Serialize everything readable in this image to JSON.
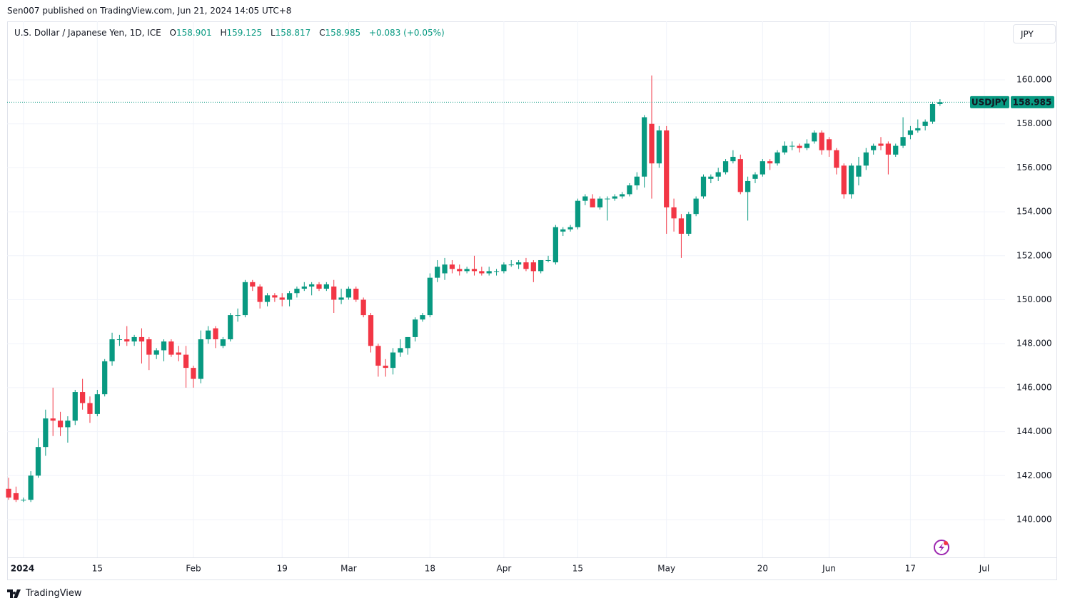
{
  "publisher_line": "Sen007 published on TradingView.com, Jun 21, 2024 14:05 UTC+8",
  "brand": "TradingView",
  "chart_data": {
    "type": "candlestick",
    "title": "U.S. Dollar / Japanese Yen, 1D, ICE",
    "ohlc_labels": [
      "O",
      "H",
      "L",
      "C"
    ],
    "change_text": "+0.083 (+0.05%)",
    "symbol": "USDJPY",
    "currency": "JPY",
    "up_color": "#089981",
    "down_color": "#f23645",
    "grid": true,
    "open": [
      141.4,
      141.2,
      140.9,
      140.9,
      142.0,
      143.3,
      144.6,
      144.5,
      144.2,
      144.5,
      145.8,
      145.3,
      144.8,
      145.7,
      147.2,
      148.2,
      148.2,
      148.1,
      148.3,
      148.2,
      147.5,
      147.7,
      148.1,
      147.6,
      147.5,
      146.9,
      146.4,
      148.2,
      148.7,
      147.9,
      148.2,
      149.3,
      149.3,
      150.8,
      150.6,
      149.9,
      150.2,
      150.1,
      150.0,
      150.3,
      150.5,
      150.6,
      150.7,
      150.5,
      150.6,
      150.0,
      150.1,
      150.5,
      150.0,
      149.3,
      147.9,
      147.0,
      146.9,
      147.6,
      147.8,
      148.3,
      149.1,
      149.3,
      151.0,
      151.2,
      151.6,
      151.4,
      151.3,
      151.4,
      151.3,
      151.2,
      151.3,
      151.3,
      151.6,
      151.6,
      151.7,
      151.7,
      151.3,
      151.8,
      151.7,
      153.1,
      153.2,
      153.3,
      154.5,
      154.6,
      154.2,
      154.6,
      154.6,
      154.7,
      154.8,
      155.2,
      155.6,
      158.0,
      156.2,
      157.7,
      154.2,
      153.7,
      153.0,
      153.9,
      154.7,
      155.5,
      155.6,
      155.8,
      156.3,
      156.4,
      154.9,
      155.5,
      155.7,
      156.3,
      156.2,
      156.7,
      157.0,
      157.0,
      156.9,
      157.2,
      157.6,
      157.3,
      156.8,
      156.1,
      154.8,
      155.6,
      156.1,
      156.8,
      157.1,
      157.1,
      156.6,
      157.0,
      157.5,
      157.7,
      157.9,
      158.1,
      158.901
    ],
    "high": [
      141.9,
      141.5,
      141.0,
      142.2,
      143.7,
      145.0,
      146.0,
      144.9,
      144.7,
      145.9,
      146.4,
      145.6,
      145.9,
      147.3,
      148.5,
      148.4,
      148.8,
      148.4,
      148.7,
      148.3,
      147.8,
      148.2,
      148.2,
      147.9,
      147.9,
      147.0,
      148.6,
      148.8,
      148.8,
      148.3,
      149.4,
      149.6,
      150.9,
      150.9,
      150.7,
      150.3,
      150.3,
      150.3,
      150.4,
      150.6,
      150.8,
      150.8,
      150.8,
      150.8,
      150.9,
      150.5,
      150.6,
      150.6,
      150.1,
      149.4,
      148.0,
      147.3,
      147.8,
      148.2,
      148.3,
      149.2,
      149.4,
      151.2,
      151.8,
      151.9,
      151.8,
      151.6,
      151.5,
      152.0,
      151.5,
      151.5,
      151.4,
      151.7,
      151.8,
      151.8,
      151.9,
      151.8,
      151.8,
      152.0,
      153.4,
      153.3,
      153.4,
      154.6,
      154.8,
      154.8,
      154.7,
      154.7,
      154.8,
      154.9,
      155.3,
      155.8,
      158.4,
      160.2,
      157.9,
      157.9,
      154.6,
      153.9,
      154.0,
      154.7,
      155.7,
      155.7,
      156.0,
      156.4,
      156.8,
      156.6,
      155.6,
      155.8,
      156.4,
      156.4,
      156.8,
      157.2,
      157.2,
      157.1,
      157.3,
      157.7,
      157.7,
      157.4,
      156.9,
      156.2,
      156.2,
      156.5,
      156.9,
      157.1,
      157.4,
      157.2,
      157.1,
      158.3,
      157.9,
      158.2,
      158.2,
      159.0,
      159.125
    ],
    "low": [
      140.9,
      140.8,
      140.8,
      140.8,
      141.9,
      142.9,
      143.8,
      143.8,
      143.5,
      144.3,
      145.0,
      144.4,
      144.7,
      145.6,
      147.0,
      147.9,
      147.9,
      147.9,
      147.1,
      146.8,
      147.3,
      147.2,
      147.4,
      147.2,
      146.0,
      146.0,
      146.2,
      148.0,
      147.8,
      147.8,
      148.1,
      149.0,
      149.2,
      150.4,
      149.6,
      149.7,
      149.9,
      149.7,
      149.7,
      150.1,
      150.4,
      150.2,
      150.4,
      150.4,
      149.4,
      149.8,
      150.0,
      149.9,
      149.2,
      147.6,
      146.5,
      146.5,
      146.6,
      147.4,
      147.5,
      148.1,
      149.0,
      149.2,
      150.8,
      150.9,
      151.2,
      151.1,
      151.2,
      151.1,
      151.1,
      151.1,
      151.1,
      151.2,
      151.5,
      151.4,
      151.3,
      150.8,
      151.2,
      151.7,
      151.6,
      152.9,
      153.1,
      153.2,
      154.3,
      154.2,
      154.1,
      153.6,
      154.5,
      154.6,
      154.7,
      155.0,
      155.1,
      154.6,
      156.0,
      153.0,
      153.1,
      151.9,
      152.9,
      153.8,
      154.6,
      155.3,
      155.4,
      155.7,
      156.2,
      154.8,
      153.6,
      155.3,
      155.6,
      155.9,
      156.1,
      156.6,
      156.8,
      156.7,
      156.8,
      157.1,
      156.6,
      156.5,
      155.7,
      154.6,
      154.6,
      155.2,
      155.9,
      156.6,
      156.8,
      155.7,
      156.5,
      156.9,
      157.3,
      157.6,
      157.7,
      158.0,
      158.817
    ],
    "close": [
      141.0,
      140.9,
      140.9,
      142.0,
      143.3,
      144.6,
      144.5,
      144.2,
      144.5,
      145.8,
      145.3,
      144.8,
      145.7,
      147.2,
      148.2,
      148.2,
      148.1,
      148.3,
      148.1,
      147.5,
      147.7,
      148.1,
      147.5,
      147.5,
      146.9,
      146.4,
      148.2,
      148.6,
      148.2,
      148.2,
      149.3,
      149.3,
      150.8,
      150.6,
      149.9,
      150.2,
      150.1,
      150.0,
      150.3,
      150.5,
      150.6,
      150.7,
      150.5,
      150.7,
      150.0,
      150.1,
      150.5,
      150.0,
      149.3,
      147.9,
      147.0,
      146.9,
      147.6,
      147.8,
      148.3,
      149.1,
      149.3,
      151.0,
      151.5,
      151.6,
      151.4,
      151.3,
      151.4,
      151.3,
      151.2,
      151.3,
      151.3,
      151.6,
      151.6,
      151.7,
      151.4,
      151.3,
      151.8,
      151.8,
      153.3,
      153.2,
      153.3,
      154.5,
      154.7,
      154.2,
      154.6,
      154.6,
      154.7,
      154.8,
      155.2,
      155.6,
      158.3,
      156.2,
      157.7,
      154.2,
      153.7,
      153.0,
      153.9,
      154.6,
      155.6,
      155.6,
      155.8,
      156.3,
      156.5,
      154.9,
      155.4,
      155.7,
      156.3,
      156.2,
      156.7,
      157.0,
      157.0,
      156.9,
      157.1,
      157.6,
      156.8,
      156.8,
      156.0,
      154.8,
      156.1,
      156.1,
      156.7,
      157.0,
      157.0,
      156.6,
      157.0,
      157.4,
      157.7,
      157.8,
      158.1,
      158.9,
      158.985
    ],
    "xlim": [
      -0.2,
      134.8
    ],
    "xticks": [
      {
        "value": 2,
        "label": "2024"
      },
      {
        "value": 12,
        "label": "15"
      },
      {
        "value": 25,
        "label": "Feb"
      },
      {
        "value": 37,
        "label": "19"
      },
      {
        "value": 46,
        "label": "Mar"
      },
      {
        "value": 57,
        "label": "18"
      },
      {
        "value": 67,
        "label": "Apr"
      },
      {
        "value": 77,
        "label": "15"
      },
      {
        "value": 89,
        "label": "May"
      },
      {
        "value": 102,
        "label": "20"
      },
      {
        "value": 111,
        "label": "Jun"
      },
      {
        "value": 122,
        "label": "17"
      },
      {
        "value": 132,
        "label": "Jul"
      }
    ],
    "ylim": [
      138.28,
      162.66
    ],
    "yticks": [
      {
        "value": 140,
        "label": "140.000"
      },
      {
        "value": 142,
        "label": "142.000"
      },
      {
        "value": 144,
        "label": "144.000"
      },
      {
        "value": 146,
        "label": "146.000"
      },
      {
        "value": 148,
        "label": "148.000"
      },
      {
        "value": 150,
        "label": "150.000"
      },
      {
        "value": 152,
        "label": "152.000"
      },
      {
        "value": 154,
        "label": "154.000"
      },
      {
        "value": 156,
        "label": "156.000"
      },
      {
        "value": 158,
        "label": "158.000"
      },
      {
        "value": 160,
        "label": "160.000"
      }
    ]
  }
}
